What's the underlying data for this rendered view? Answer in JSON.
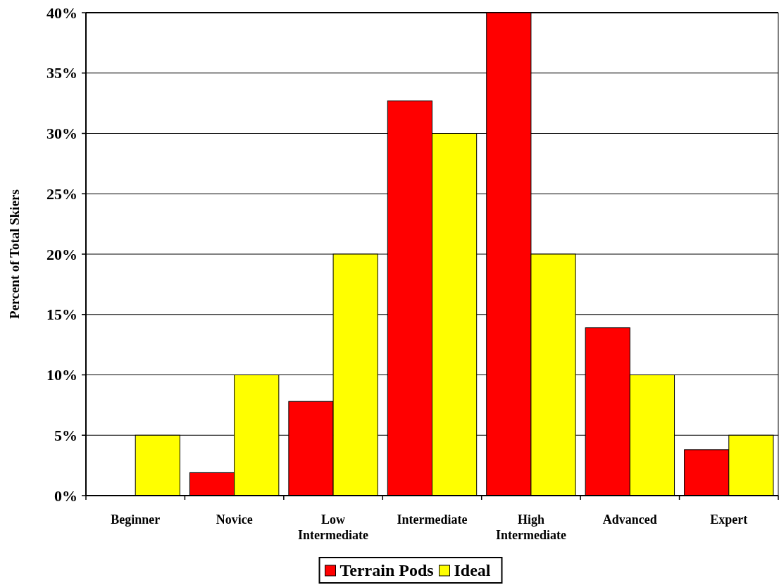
{
  "chart_data": {
    "type": "bar",
    "ylabel": "Percent of Total Skiers",
    "categories": [
      "Beginner",
      "Novice",
      "Low Intermediate",
      "Intermediate",
      "High Intermediate",
      "Advanced",
      "Expert"
    ],
    "series": [
      {
        "name": "Terrain Pods",
        "color": "#ff0000",
        "values": [
          0,
          1.9,
          7.8,
          32.7,
          40,
          13.9,
          3.8
        ]
      },
      {
        "name": "Ideal",
        "color": "#ffff00",
        "values": [
          5,
          10,
          20,
          30,
          20,
          10,
          5
        ]
      }
    ],
    "ylim": [
      0,
      40
    ],
    "yticks": [
      {
        "value": 0,
        "label": "0%"
      },
      {
        "value": 5,
        "label": "5%"
      },
      {
        "value": 10,
        "label": "10%"
      },
      {
        "value": 15,
        "label": "15%"
      },
      {
        "value": 20,
        "label": "20%"
      },
      {
        "value": 25,
        "label": "25%"
      },
      {
        "value": 30,
        "label": "30%"
      },
      {
        "value": 35,
        "label": "35%"
      },
      {
        "value": 40,
        "label": "40%"
      }
    ],
    "grid": "y",
    "legend": "bottom"
  }
}
